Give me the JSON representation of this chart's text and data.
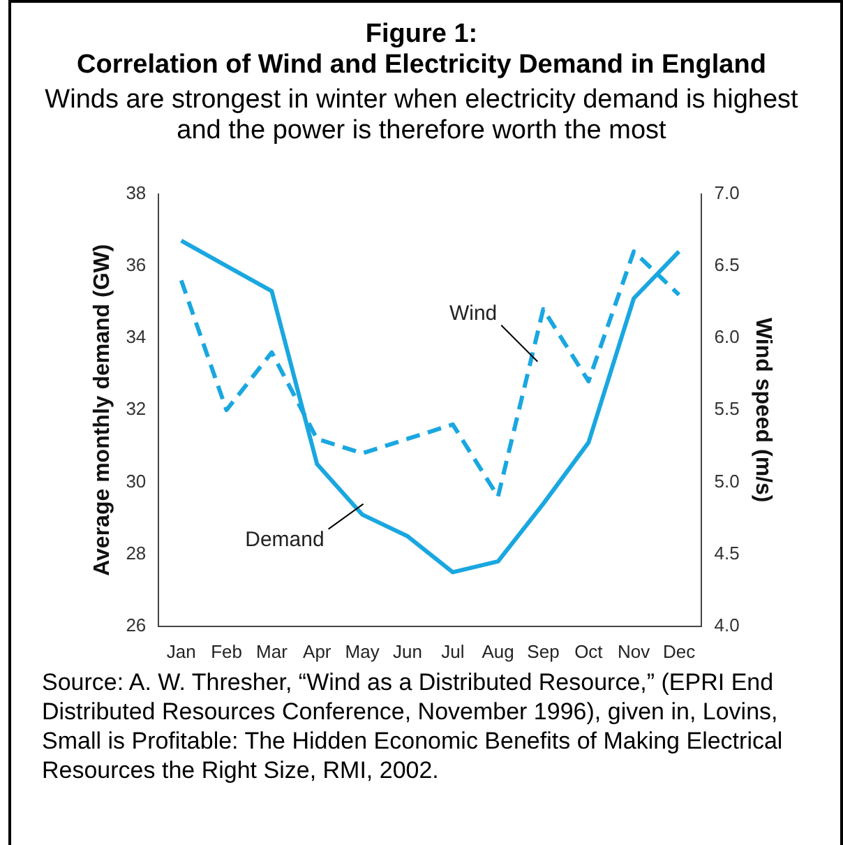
{
  "chart_data": {
    "type": "line",
    "title": "Figure 1: Correlation of Wind and Electricity Demand in England",
    "subtitle": "Winds are strongest in winter when electricity demand is highest and the power is therefore worth the most",
    "ylabel": "Average monthly demand (GW)",
    "y2label": "Wind speed (m/s)",
    "categories": [
      "Jan",
      "Feb",
      "Mar",
      "Apr",
      "May",
      "Jun",
      "Jul",
      "Aug",
      "Sep",
      "Oct",
      "Nov",
      "Dec"
    ],
    "series": [
      {
        "name": "Demand",
        "color": "#1aa7e0",
        "line_style": "solid",
        "values": [
          36.7,
          36.0,
          35.3,
          30.5,
          29.1,
          28.5,
          27.5,
          27.8,
          29.4,
          31.1,
          35.1,
          36.4
        ]
      },
      {
        "name": "Wind",
        "color": "#1aa7e0",
        "line_style": "dashed",
        "axis": "y2",
        "values": [
          6.4,
          5.5,
          5.9,
          5.3,
          5.2,
          5.3,
          5.4,
          4.9,
          6.2,
          5.7,
          6.6,
          6.3
        ]
      }
    ],
    "ylim": [
      26,
      38
    ],
    "yticks": [
      26,
      28,
      30,
      32,
      34,
      36,
      38
    ],
    "y2lim": [
      4.0,
      7.0
    ],
    "y2ticks": [
      {
        "value": 4,
        "label": "4.0"
      },
      {
        "value": 4.5,
        "label": "4.5"
      },
      {
        "value": 5,
        "label": "5.0"
      },
      {
        "value": 5.5,
        "label": "5.5"
      },
      {
        "value": 6,
        "label": "6.0"
      },
      {
        "value": 6.5,
        "label": "6.5"
      },
      {
        "value": 7,
        "label": "7.0"
      }
    ],
    "grid": false,
    "legend": false,
    "marker": "none",
    "annotations": [
      "Source: A. W. Thresher, “Wind as a Distributed Resource,” (EPRI End Distributed Resources Conference, November 1996), given in, Lovins, Small is Profitable: The Hidden Economic Benefits of Making Electrical Resources the Right Size, RMI, 2002."
    ]
  }
}
